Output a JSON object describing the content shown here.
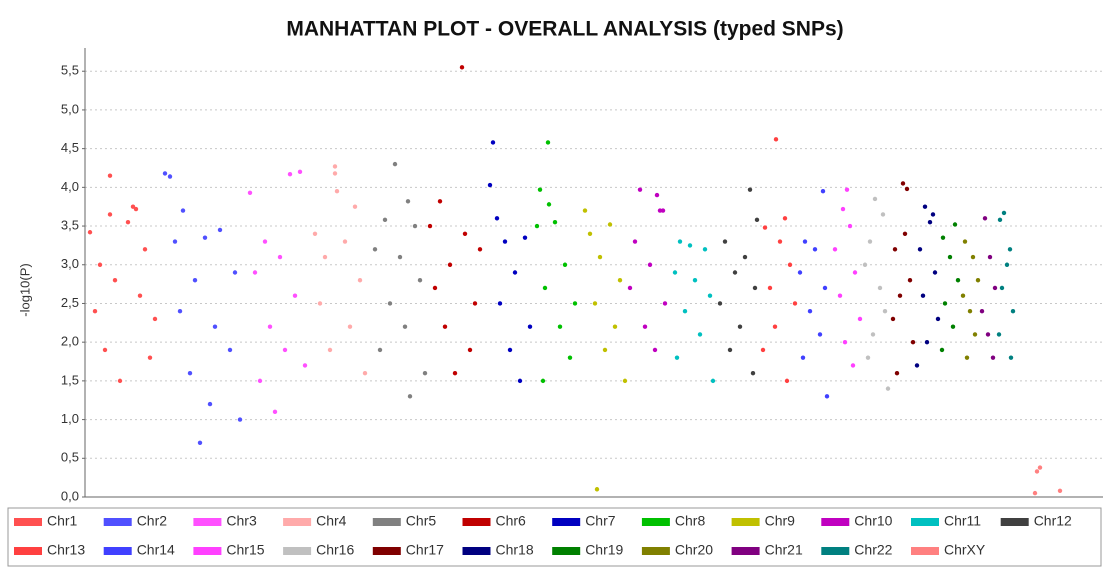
{
  "chart_data": {
    "type": "scatter",
    "title": "MANHATTAN PLOT - OVERALL ANALYSIS (typed SNPs)",
    "y_label": "-log10(P)",
    "xlim": [
      0,
      1018
    ],
    "ylim": [
      0,
      5.8
    ],
    "grid": true,
    "yticks": [
      {
        "value": 0,
        "label": "0,0"
      },
      {
        "value": 0.5,
        "label": "0,5"
      },
      {
        "value": 1,
        "label": "1,0"
      },
      {
        "value": 1.5,
        "label": "1,5"
      },
      {
        "value": 2,
        "label": "2,0"
      },
      {
        "value": 2.5,
        "label": "2,5"
      },
      {
        "value": 3,
        "label": "3,0"
      },
      {
        "value": 3.5,
        "label": "3,5"
      },
      {
        "value": 4,
        "label": "4,0"
      },
      {
        "value": 4.5,
        "label": "4,5"
      },
      {
        "value": 5,
        "label": "5,0"
      },
      {
        "value": 5.5,
        "label": "5,5"
      }
    ],
    "series": [
      {
        "name": "Chr1",
        "color": "#ff5050",
        "x": [
          25,
          48,
          51,
          25,
          5,
          43,
          15,
          60,
          30,
          10,
          55,
          70,
          20,
          65,
          35
        ],
        "values": [
          4.15,
          3.75,
          3.72,
          3.65,
          3.42,
          3.55,
          3.0,
          3.2,
          2.8,
          2.4,
          2.6,
          2.3,
          1.9,
          1.8,
          1.5
        ]
      },
      {
        "name": "Chr2",
        "color": "#5050ff",
        "x": [
          80,
          85,
          98,
          90,
          120,
          135,
          110,
          150,
          95,
          130,
          145,
          105,
          115,
          125,
          155
        ],
        "values": [
          4.18,
          4.14,
          3.7,
          3.3,
          3.35,
          3.45,
          2.8,
          2.9,
          2.4,
          2.2,
          1.9,
          1.6,
          0.7,
          1.2,
          1.0
        ]
      },
      {
        "name": "Chr3",
        "color": "#ff50ff",
        "x": [
          165,
          205,
          215,
          180,
          195,
          170,
          210,
          185,
          200,
          175,
          220,
          190
        ],
        "values": [
          3.93,
          4.17,
          4.2,
          3.3,
          3.1,
          2.9,
          2.6,
          2.2,
          1.9,
          1.5,
          1.7,
          1.1
        ]
      },
      {
        "name": "Chr4",
        "color": "#ffaaaa",
        "x": [
          250,
          250,
          252,
          270,
          230,
          240,
          260,
          275,
          235,
          265,
          245,
          280
        ],
        "values": [
          4.27,
          4.18,
          3.95,
          3.75,
          3.4,
          3.1,
          3.3,
          2.8,
          2.5,
          2.2,
          1.9,
          1.6
        ]
      },
      {
        "name": "Chr5",
        "color": "#808080",
        "x": [
          310,
          323,
          300,
          330,
          290,
          315,
          335,
          305,
          320,
          295,
          340,
          325
        ],
        "values": [
          4.3,
          3.82,
          3.58,
          3.5,
          3.2,
          3.1,
          2.8,
          2.5,
          2.2,
          1.9,
          1.6,
          1.3
        ]
      },
      {
        "name": "Chr6",
        "color": "#c00000",
        "x": [
          377,
          355,
          345,
          380,
          395,
          365,
          350,
          390,
          360,
          385,
          370
        ],
        "values": [
          5.55,
          3.82,
          3.5,
          3.4,
          3.2,
          3.0,
          2.7,
          2.5,
          2.2,
          1.9,
          1.6
        ]
      },
      {
        "name": "Chr7",
        "color": "#0000c0",
        "x": [
          408,
          405,
          412,
          420,
          440,
          430,
          415,
          445,
          425,
          435
        ],
        "values": [
          4.58,
          4.03,
          3.6,
          3.3,
          3.35,
          2.9,
          2.5,
          2.2,
          1.9,
          1.5
        ]
      },
      {
        "name": "Chr8",
        "color": "#00c000",
        "x": [
          463,
          455,
          464,
          470,
          452,
          480,
          460,
          490,
          475,
          485,
          458
        ],
        "values": [
          4.58,
          3.97,
          3.78,
          3.55,
          3.5,
          3.0,
          2.7,
          2.5,
          2.2,
          1.8,
          1.5
        ]
      },
      {
        "name": "Chr9",
        "color": "#c0c000",
        "x": [
          500,
          505,
          525,
          515,
          535,
          510,
          530,
          520,
          540,
          512
        ],
        "values": [
          3.7,
          3.4,
          3.52,
          3.1,
          2.8,
          2.5,
          2.2,
          1.9,
          1.5,
          0.1
        ]
      },
      {
        "name": "Chr10",
        "color": "#c000c0",
        "x": [
          555,
          578,
          575,
          572,
          550,
          565,
          545,
          580,
          560,
          570
        ],
        "values": [
          3.97,
          3.7,
          3.7,
          3.9,
          3.3,
          3.0,
          2.7,
          2.5,
          2.2,
          1.9
        ]
      },
      {
        "name": "Chr11",
        "color": "#00c0c0",
        "x": [
          595,
          605,
          620,
          590,
          610,
          625,
          600,
          615,
          592,
          628
        ],
        "values": [
          3.3,
          3.25,
          3.2,
          2.9,
          2.8,
          2.6,
          2.4,
          2.1,
          1.8,
          1.5
        ]
      },
      {
        "name": "Chr12",
        "color": "#404040",
        "x": [
          665,
          672,
          640,
          660,
          650,
          670,
          635,
          655,
          645,
          668
        ],
        "values": [
          3.97,
          3.58,
          3.3,
          3.1,
          2.9,
          2.7,
          2.5,
          2.2,
          1.9,
          1.6
        ]
      },
      {
        "name": "Chr13",
        "color": "#ff4040",
        "x": [
          691,
          700,
          680,
          695,
          705,
          685,
          710,
          690,
          678,
          702
        ],
        "values": [
          4.62,
          3.6,
          3.48,
          3.3,
          3.0,
          2.7,
          2.5,
          2.2,
          1.9,
          1.5
        ]
      },
      {
        "name": "Chr14",
        "color": "#4040ff",
        "x": [
          738,
          720,
          730,
          715,
          740,
          725,
          735,
          718,
          742
        ],
        "values": [
          3.95,
          3.3,
          3.2,
          2.9,
          2.7,
          2.4,
          2.1,
          1.8,
          1.3
        ]
      },
      {
        "name": "Chr15",
        "color": "#ff40ff",
        "x": [
          762,
          758,
          765,
          750,
          770,
          755,
          775,
          760,
          768
        ],
        "values": [
          3.97,
          3.72,
          3.5,
          3.2,
          2.9,
          2.6,
          2.3,
          2.0,
          1.7
        ]
      },
      {
        "name": "Chr16",
        "color": "#c0c0c0",
        "x": [
          790,
          798,
          785,
          780,
          795,
          800,
          788,
          783,
          803
        ],
        "values": [
          3.85,
          3.65,
          3.3,
          3.0,
          2.7,
          2.4,
          2.1,
          1.8,
          1.4
        ]
      },
      {
        "name": "Chr17",
        "color": "#800000",
        "x": [
          818,
          822,
          820,
          810,
          825,
          815,
          808,
          828,
          812
        ],
        "values": [
          4.05,
          3.98,
          3.4,
          3.2,
          2.8,
          2.6,
          2.3,
          2.0,
          1.6
        ]
      },
      {
        "name": "Chr18",
        "color": "#000080",
        "x": [
          840,
          848,
          845,
          835,
          850,
          838,
          853,
          842,
          832
        ],
        "values": [
          3.75,
          3.65,
          3.55,
          3.2,
          2.9,
          2.6,
          2.3,
          2.0,
          1.7
        ]
      },
      {
        "name": "Chr19",
        "color": "#008000",
        "x": [
          870,
          858,
          865,
          873,
          860,
          868,
          857
        ],
        "values": [
          3.52,
          3.35,
          3.1,
          2.8,
          2.5,
          2.2,
          1.9
        ]
      },
      {
        "name": "Chr20",
        "color": "#808000",
        "x": [
          880,
          888,
          893,
          878,
          885,
          890,
          882
        ],
        "values": [
          3.3,
          3.1,
          2.8,
          2.6,
          2.4,
          2.1,
          1.8
        ]
      },
      {
        "name": "Chr21",
        "color": "#800080",
        "x": [
          900,
          905,
          910,
          897,
          903,
          908
        ],
        "values": [
          3.6,
          3.1,
          2.7,
          2.4,
          2.1,
          1.8
        ]
      },
      {
        "name": "Chr22",
        "color": "#008080",
        "x": [
          919,
          915,
          925,
          922,
          917,
          928,
          914,
          926
        ],
        "values": [
          3.67,
          3.58,
          3.2,
          3.0,
          2.7,
          2.4,
          2.1,
          1.8
        ]
      },
      {
        "name": "ChrXY",
        "color": "#ff8080",
        "x": [
          955,
          952,
          950,
          975
        ],
        "values": [
          0.38,
          0.33,
          0.05,
          0.08
        ]
      }
    ]
  }
}
